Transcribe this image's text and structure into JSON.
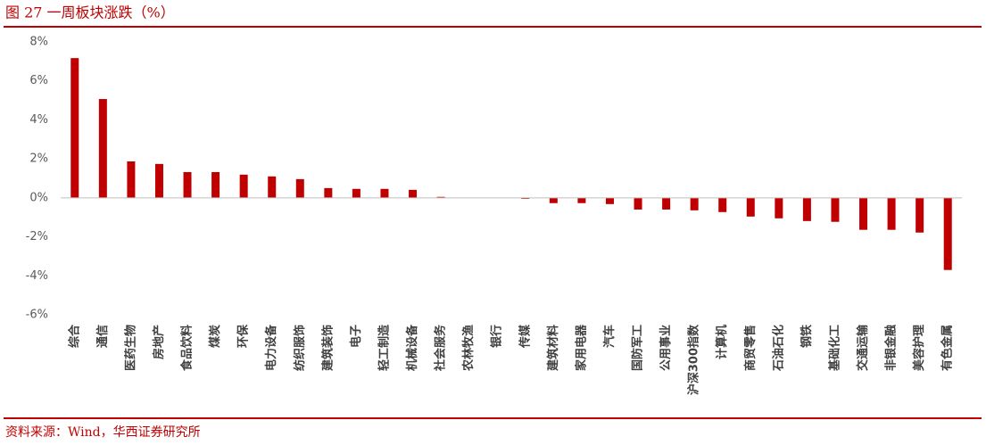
{
  "chart_data": {
    "type": "bar",
    "title": "图 27 一周板块涨跌（%）",
    "source": "资料来源：Wind，华西证券研究所",
    "categories": [
      "综合",
      "通信",
      "医药生物",
      "房地产",
      "食品饮料",
      "煤炭",
      "环保",
      "电力设备",
      "纺织服饰",
      "建筑装饰",
      "电子",
      "轻工制造",
      "机械设备",
      "社会服务",
      "农林牧渔",
      "银行",
      "传媒",
      "建筑材料",
      "家用电器",
      "汽车",
      "国防军工",
      "公用事业",
      "沪深300指数",
      "计算机",
      "商贸零售",
      "石油石化",
      "钢铁",
      "基础化工",
      "交通运输",
      "非银金融",
      "美容护理",
      "有色金属"
    ],
    "values": [
      7.17,
      5.07,
      1.87,
      1.74,
      1.32,
      1.32,
      1.19,
      1.1,
      0.96,
      0.5,
      0.46,
      0.46,
      0.41,
      0.05,
      0,
      0,
      -0.05,
      -0.27,
      -0.27,
      -0.32,
      -0.6,
      -0.6,
      -0.64,
      -0.73,
      -0.96,
      -1.05,
      -1.19,
      -1.23,
      -1.64,
      -1.64,
      -1.78,
      -3.7
    ],
    "color": "#c00000",
    "ylim": [
      -6,
      8
    ],
    "yticks": [
      {
        "value": -6,
        "label": "-6%"
      },
      {
        "value": -4,
        "label": "-4%"
      },
      {
        "value": -2,
        "label": "-2%"
      },
      {
        "value": 0,
        "label": "0%"
      },
      {
        "value": 2,
        "label": "2%"
      },
      {
        "value": 4,
        "label": "4%"
      },
      {
        "value": 6,
        "label": "6%"
      },
      {
        "value": 8,
        "label": "8%"
      }
    ],
    "grid": false
  }
}
